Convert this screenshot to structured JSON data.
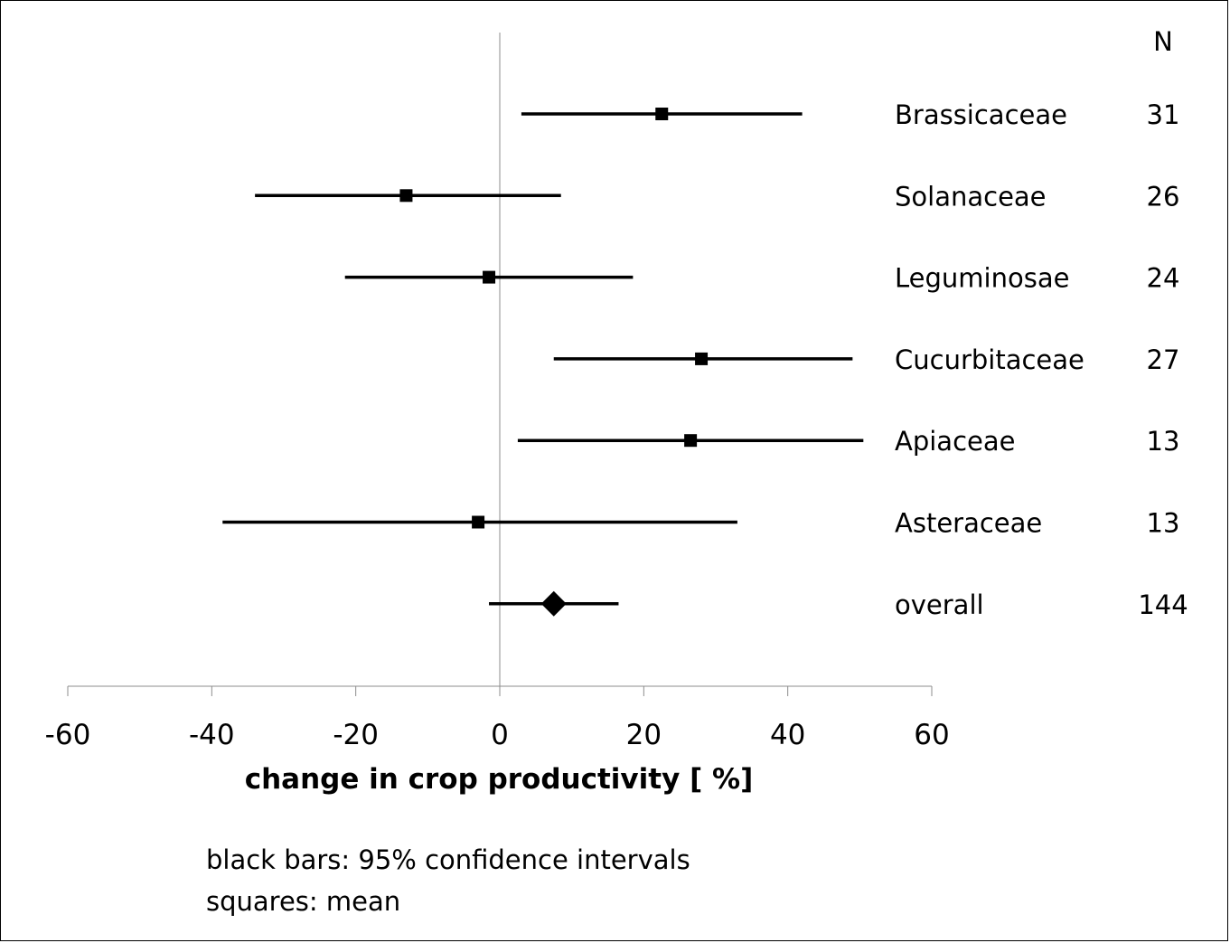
{
  "chart_data": {
    "type": "forest",
    "xlabel": "change in crop productivity [ %]",
    "xlim": [
      -60,
      60
    ],
    "xticks": [
      -60,
      -40,
      -20,
      0,
      20,
      40,
      60
    ],
    "n_header": "N",
    "rows": [
      {
        "label": "Brassicaceae",
        "mean": 22.5,
        "ci_low": 3,
        "ci_high": 42,
        "n": "31",
        "marker": "square"
      },
      {
        "label": "Solanaceae",
        "mean": -13,
        "ci_low": -34,
        "ci_high": 8.5,
        "n": "26",
        "marker": "square"
      },
      {
        "label": "Leguminosae",
        "mean": -1.5,
        "ci_low": -21.5,
        "ci_high": 18.5,
        "n": "24",
        "marker": "square"
      },
      {
        "label": "Cucurbitaceae",
        "mean": 28,
        "ci_low": 7.5,
        "ci_high": 49,
        "n": "27",
        "marker": "square"
      },
      {
        "label": "Apiaceae",
        "mean": 26.5,
        "ci_low": 2.5,
        "ci_high": 50.5,
        "n": "13",
        "marker": "square"
      },
      {
        "label": "Asteraceae",
        "mean": -3,
        "ci_low": -38.5,
        "ci_high": 33,
        "n": "13",
        "marker": "square"
      },
      {
        "label": "overall",
        "mean": 7.5,
        "ci_low": -1.5,
        "ci_high": 16.5,
        "n": "144",
        "marker": "diamond"
      }
    ],
    "legend": {
      "line1": "black bars: 95% confidence intervals",
      "line2": "squares: mean"
    },
    "colors": {
      "marks": "#000000",
      "zero_line": "#8c8c8c",
      "axis": "#8c8c8c"
    }
  }
}
